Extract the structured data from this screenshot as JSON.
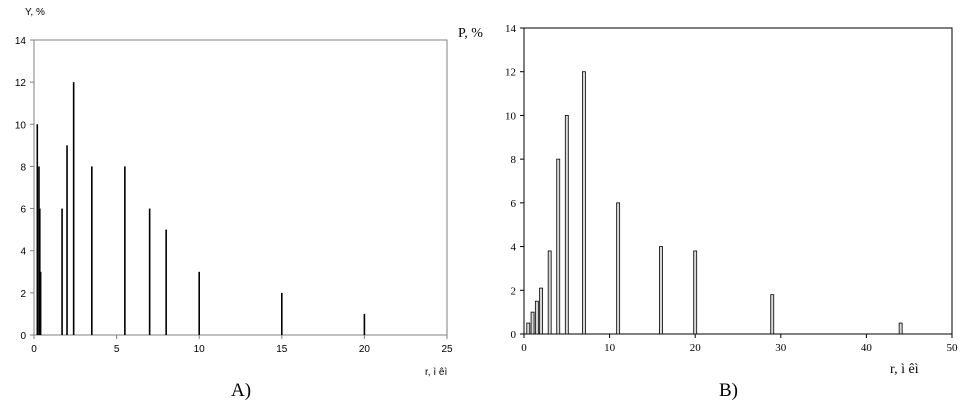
{
  "chart_data": [
    {
      "type": "bar",
      "panel_label": "A)",
      "title": "",
      "ylabel": "Y, %",
      "xlabel": "r, ì êì",
      "xlim": [
        0,
        25
      ],
      "ylim": [
        0,
        14
      ],
      "xticks": [
        0,
        5,
        10,
        15,
        20,
        25
      ],
      "yticks": [
        0,
        2,
        4,
        6,
        8,
        10,
        12,
        14
      ],
      "grid": false,
      "x": [
        0.2,
        0.3,
        0.35,
        0.4,
        1.7,
        2.0,
        2.4,
        3.5,
        5.5,
        7.0,
        8.0,
        10.0,
        15.0,
        20.0
      ],
      "values": [
        10,
        8,
        6,
        3,
        6,
        9,
        12,
        8,
        8,
        6,
        5,
        3,
        2,
        1
      ]
    },
    {
      "type": "bar",
      "panel_label": "B)",
      "title": "",
      "ylabel": "P, %",
      "xlabel": "r,  ì êì",
      "xlim": [
        0,
        50
      ],
      "ylim": [
        0,
        14
      ],
      "xticks": [
        0,
        10,
        20,
        30,
        40,
        50
      ],
      "yticks": [
        0,
        2,
        4,
        6,
        8,
        10,
        12,
        14
      ],
      "grid": false,
      "x": [
        0.5,
        1.0,
        1.5,
        2.0,
        3.0,
        4.0,
        5.0,
        7.0,
        11.0,
        16.0,
        20.0,
        29.0,
        44.0
      ],
      "values": [
        0.5,
        1.0,
        1.5,
        2.1,
        3.8,
        8.0,
        10.0,
        12.0,
        6.0,
        4.0,
        3.8,
        1.8,
        0.5
      ]
    }
  ]
}
